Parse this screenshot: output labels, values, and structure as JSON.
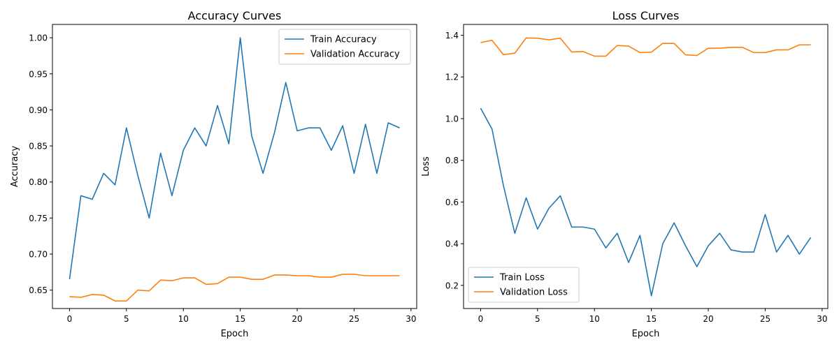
{
  "chart_data": [
    {
      "type": "line",
      "title": "Accuracy Curves",
      "xlabel": "Epoch",
      "ylabel": "Accuracy",
      "xlim": [
        -1.5,
        30.5
      ],
      "ylim": [
        0.6245,
        1.0185
      ],
      "xticks": [
        0,
        5,
        10,
        15,
        20,
        25,
        30
      ],
      "xtick_labels": [
        "0",
        "5",
        "10",
        "15",
        "20",
        "25",
        "30"
      ],
      "yticks": [
        0.65,
        0.7,
        0.75,
        0.8,
        0.85,
        0.9,
        0.95,
        1.0
      ],
      "ytick_labels": [
        "0.65",
        "0.70",
        "0.75",
        "0.80",
        "0.85",
        "0.90",
        "0.95",
        "1.00"
      ],
      "legend_position": "top-right",
      "grid": false,
      "x": [
        0,
        1,
        2,
        3,
        4,
        5,
        6,
        7,
        8,
        9,
        10,
        11,
        12,
        13,
        14,
        15,
        16,
        17,
        18,
        19,
        20,
        21,
        22,
        23,
        24,
        25,
        26,
        27,
        28,
        29
      ],
      "series": [
        {
          "name": "Train Accuracy",
          "color": "#1f77b4",
          "values": [
            0.665,
            0.781,
            0.776,
            0.812,
            0.796,
            0.875,
            0.809,
            0.75,
            0.84,
            0.781,
            0.844,
            0.875,
            0.85,
            0.906,
            0.853,
            1.0,
            0.864,
            0.812,
            0.868,
            0.938,
            0.871,
            0.875,
            0.875,
            0.844,
            0.878,
            0.812,
            0.88,
            0.812,
            0.882,
            0.875
          ]
        },
        {
          "name": "Validation Accuracy",
          "color": "#ff7f0e",
          "values": [
            0.641,
            0.64,
            0.644,
            0.643,
            0.635,
            0.635,
            0.65,
            0.649,
            0.664,
            0.663,
            0.667,
            0.667,
            0.658,
            0.659,
            0.668,
            0.668,
            0.665,
            0.665,
            0.671,
            0.671,
            0.67,
            0.67,
            0.668,
            0.668,
            0.672,
            0.672,
            0.67,
            0.67,
            0.67,
            0.67
          ]
        }
      ]
    },
    {
      "type": "line",
      "title": "Loss Curves",
      "xlabel": "Epoch",
      "ylabel": "Loss",
      "xlim": [
        -1.5,
        30.5
      ],
      "ylim": [
        0.089,
        1.452
      ],
      "xticks": [
        0,
        5,
        10,
        15,
        20,
        25,
        30
      ],
      "xtick_labels": [
        "0",
        "5",
        "10",
        "15",
        "20",
        "25",
        "30"
      ],
      "yticks": [
        0.2,
        0.4,
        0.6,
        0.8,
        1.0,
        1.2,
        1.4
      ],
      "ytick_labels": [
        "0.2",
        "0.4",
        "0.6",
        "0.8",
        "1.0",
        "1.2",
        "1.4"
      ],
      "legend_position": "bottom-left",
      "grid": false,
      "x": [
        0,
        1,
        2,
        3,
        4,
        5,
        6,
        7,
        8,
        9,
        10,
        11,
        12,
        13,
        14,
        15,
        16,
        17,
        18,
        19,
        20,
        21,
        22,
        23,
        24,
        25,
        26,
        27,
        28,
        29
      ],
      "series": [
        {
          "name": "Train Loss",
          "color": "#1f77b4",
          "values": [
            1.05,
            0.95,
            0.68,
            0.45,
            0.62,
            0.47,
            0.57,
            0.63,
            0.48,
            0.48,
            0.47,
            0.38,
            0.45,
            0.31,
            0.44,
            0.15,
            0.4,
            0.5,
            0.39,
            0.29,
            0.39,
            0.45,
            0.37,
            0.36,
            0.36,
            0.54,
            0.36,
            0.44,
            0.35,
            0.43
          ]
        },
        {
          "name": "Validation Loss",
          "color": "#ff7f0e",
          "values": [
            1.365,
            1.376,
            1.307,
            1.314,
            1.387,
            1.386,
            1.378,
            1.386,
            1.32,
            1.322,
            1.3,
            1.3,
            1.351,
            1.348,
            1.317,
            1.319,
            1.361,
            1.361,
            1.306,
            1.303,
            1.338,
            1.338,
            1.342,
            1.342,
            1.317,
            1.317,
            1.33,
            1.33,
            1.354,
            1.354
          ]
        }
      ]
    }
  ]
}
